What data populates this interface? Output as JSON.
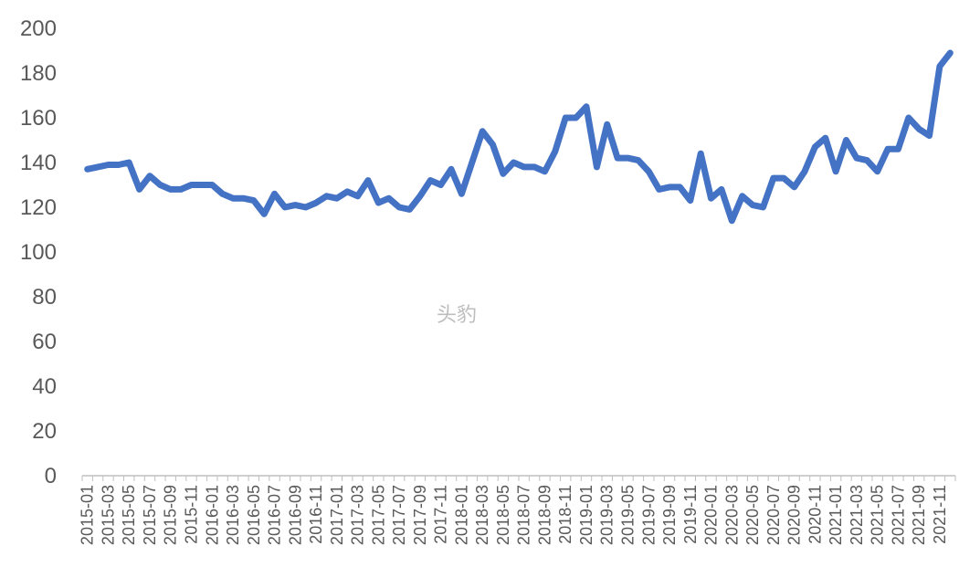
{
  "watermark": "头豹",
  "chart_data": {
    "type": "line",
    "title": "",
    "xlabel": "",
    "ylabel": "",
    "ylim": [
      0,
      200
    ],
    "yticks": [
      0,
      20,
      40,
      60,
      80,
      100,
      120,
      140,
      160,
      180,
      200
    ],
    "grid": false,
    "legend": "none",
    "line_color": "#4472C4",
    "x": [
      "2015-01",
      "2015-02",
      "2015-03",
      "2015-04",
      "2015-05",
      "2015-06",
      "2015-07",
      "2015-08",
      "2015-09",
      "2015-10",
      "2015-11",
      "2015-12",
      "2016-01",
      "2016-02",
      "2016-03",
      "2016-04",
      "2016-05",
      "2016-06",
      "2016-07",
      "2016-08",
      "2016-09",
      "2016-10",
      "2016-11",
      "2016-12",
      "2017-01",
      "2017-02",
      "2017-03",
      "2017-04",
      "2017-05",
      "2017-06",
      "2017-07",
      "2017-08",
      "2017-09",
      "2017-10",
      "2017-11",
      "2017-12",
      "2018-01",
      "2018-02",
      "2018-03",
      "2018-04",
      "2018-05",
      "2018-06",
      "2018-07",
      "2018-08",
      "2018-09",
      "2018-10",
      "2018-11",
      "2018-12",
      "2019-01",
      "2019-02",
      "2019-03",
      "2019-04",
      "2019-05",
      "2019-06",
      "2019-07",
      "2019-08",
      "2019-09",
      "2019-10",
      "2019-11",
      "2019-12",
      "2020-01",
      "2020-02",
      "2020-03",
      "2020-04",
      "2020-05",
      "2020-06",
      "2020-07",
      "2020-08",
      "2020-09",
      "2020-10",
      "2020-11",
      "2020-12",
      "2021-01",
      "2021-02",
      "2021-03",
      "2021-04",
      "2021-05",
      "2021-06",
      "2021-07",
      "2021-08",
      "2021-09",
      "2021-10",
      "2021-11",
      "2021-12"
    ],
    "xtick_labels": [
      "2015-01",
      "2015-03",
      "2015-05",
      "2015-07",
      "2015-09",
      "2015-11",
      "2016-01",
      "2016-03",
      "2016-05",
      "2016-07",
      "2016-09",
      "2016-11",
      "2017-01",
      "2017-03",
      "2017-05",
      "2017-07",
      "2017-09",
      "2017-11",
      "2018-01",
      "2018-03",
      "2018-05",
      "2018-07",
      "2018-09",
      "2018-11",
      "2019-01",
      "2019-03",
      "2019-05",
      "2019-07",
      "2019-09",
      "2019-11",
      "2020-01",
      "2020-03",
      "2020-05",
      "2020-07",
      "2020-09",
      "2020-11",
      "2021-01",
      "2021-03",
      "2021-05",
      "2021-07",
      "2021-09",
      "2021-11"
    ],
    "series": [
      {
        "values": [
          137,
          138,
          139,
          139,
          140,
          128,
          134,
          130,
          128,
          128,
          130,
          130,
          130,
          126,
          124,
          124,
          123,
          117,
          126,
          120,
          121,
          120,
          122,
          125,
          124,
          127,
          125,
          132,
          122,
          124,
          120,
          119,
          125,
          132,
          130,
          137,
          126,
          140,
          154,
          148,
          135,
          140,
          138,
          138,
          136,
          145,
          160,
          160,
          165,
          138,
          157,
          142,
          142,
          141,
          136,
          128,
          129,
          129,
          123,
          144,
          124,
          128,
          114,
          125,
          121,
          120,
          133,
          133,
          129,
          136,
          147,
          151,
          136,
          150,
          142,
          141,
          136,
          146,
          146,
          160,
          155,
          152,
          183,
          189
        ]
      }
    ]
  }
}
